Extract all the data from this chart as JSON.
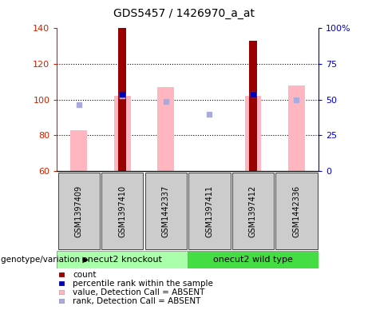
{
  "title": "GDS5457 / 1426970_a_at",
  "samples": [
    "GSM1397409",
    "GSM1397410",
    "GSM1442337",
    "GSM1397411",
    "GSM1397412",
    "GSM1442336"
  ],
  "group1_label": "onecut2 knockout",
  "group2_label": "onecut2 wild type",
  "group1_color": "#AAFFAA",
  "group2_color": "#44DD44",
  "gray_box_color": "#CCCCCC",
  "count_values": [
    null,
    140,
    null,
    null,
    133,
    null
  ],
  "count_color": "#990000",
  "count_bar_width": 0.18,
  "pink_bar_top": [
    83,
    102,
    107,
    null,
    102,
    108
  ],
  "pink_bar_color": "#FFB6C1",
  "pink_bar_width": 0.38,
  "pink_bar_bottom": 60,
  "blue_dot_values": [
    null,
    103,
    null,
    null,
    103,
    null
  ],
  "blue_dot_color": "#0000BB",
  "lavender_dot_values": [
    97,
    102,
    99,
    92,
    103,
    100
  ],
  "lavender_dot_color": "#AAAADD",
  "ylim_left": [
    60,
    140
  ],
  "ylim_right": [
    0,
    100
  ],
  "yticks_left": [
    60,
    80,
    100,
    120,
    140
  ],
  "ytick_right": [
    0,
    25,
    50,
    75,
    100
  ],
  "ytick_right_labels": [
    "0",
    "25",
    "50",
    "75",
    "100%"
  ],
  "dotted_lines": [
    80,
    100,
    120
  ],
  "left_tick_color": "#CC2200",
  "right_tick_color": "#0000CC",
  "legend": [
    {
      "label": "count",
      "color": "#990000"
    },
    {
      "label": "percentile rank within the sample",
      "color": "#0000BB"
    },
    {
      "label": "value, Detection Call = ABSENT",
      "color": "#FFB6C1"
    },
    {
      "label": "rank, Detection Call = ABSENT",
      "color": "#AAAADD"
    }
  ],
  "genotype_label": "genotype/variation"
}
